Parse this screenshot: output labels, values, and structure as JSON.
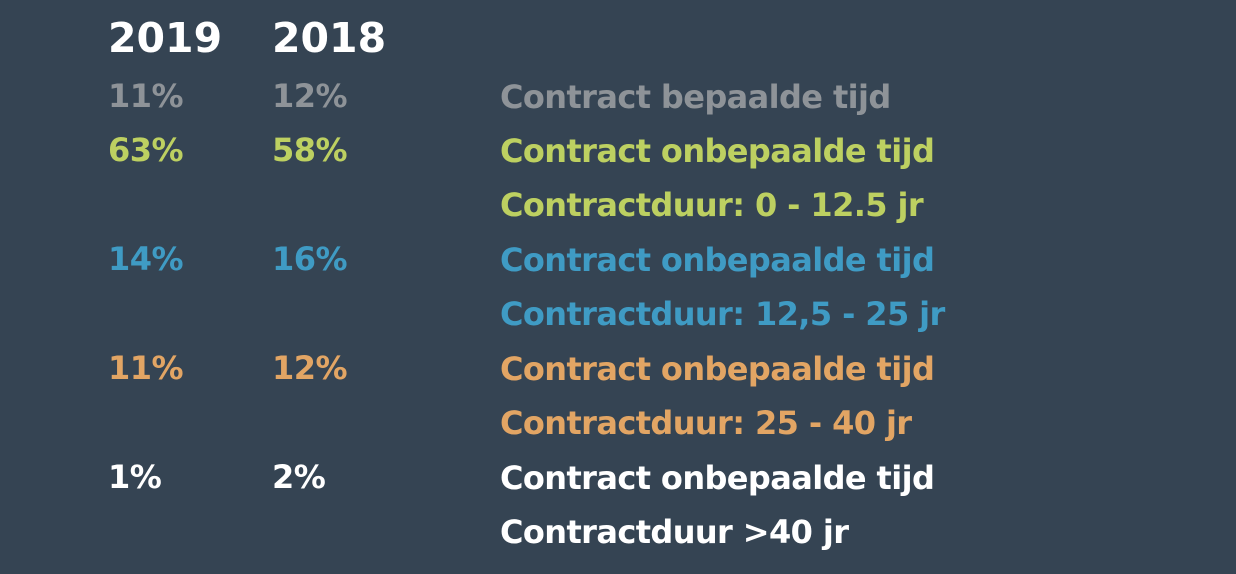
{
  "header": {
    "year_2019": "2019",
    "year_2018": "2018"
  },
  "rows": [
    {
      "pct_2019": "11%",
      "pct_2018": "12%",
      "label_line1": "Contract bepaalde tijd",
      "label_line2": "",
      "color": "#8e9398"
    },
    {
      "pct_2019": "63%",
      "pct_2018": "58%",
      "label_line1": "Contract onbepaalde tijd",
      "label_line2": "Contractduur: 0 - 12.5 jr",
      "color": "#bdd061"
    },
    {
      "pct_2019": "14%",
      "pct_2018": "16%",
      "label_line1": "Contract onbepaalde tijd",
      "label_line2": "Contractduur: 12,5 - 25 jr",
      "color": "#3f9bc4"
    },
    {
      "pct_2019": "11%",
      "pct_2018": "12%",
      "label_line1": "Contract onbepaalde tijd",
      "label_line2": "Contractduur: 25 - 40 jr",
      "color": "#e2a564"
    },
    {
      "pct_2019": "1%",
      "pct_2018": "2%",
      "label_line1": "Contract onbepaalde tijd",
      "label_line2": "Contractduur >40 jr",
      "color": "#ffffff"
    }
  ]
}
